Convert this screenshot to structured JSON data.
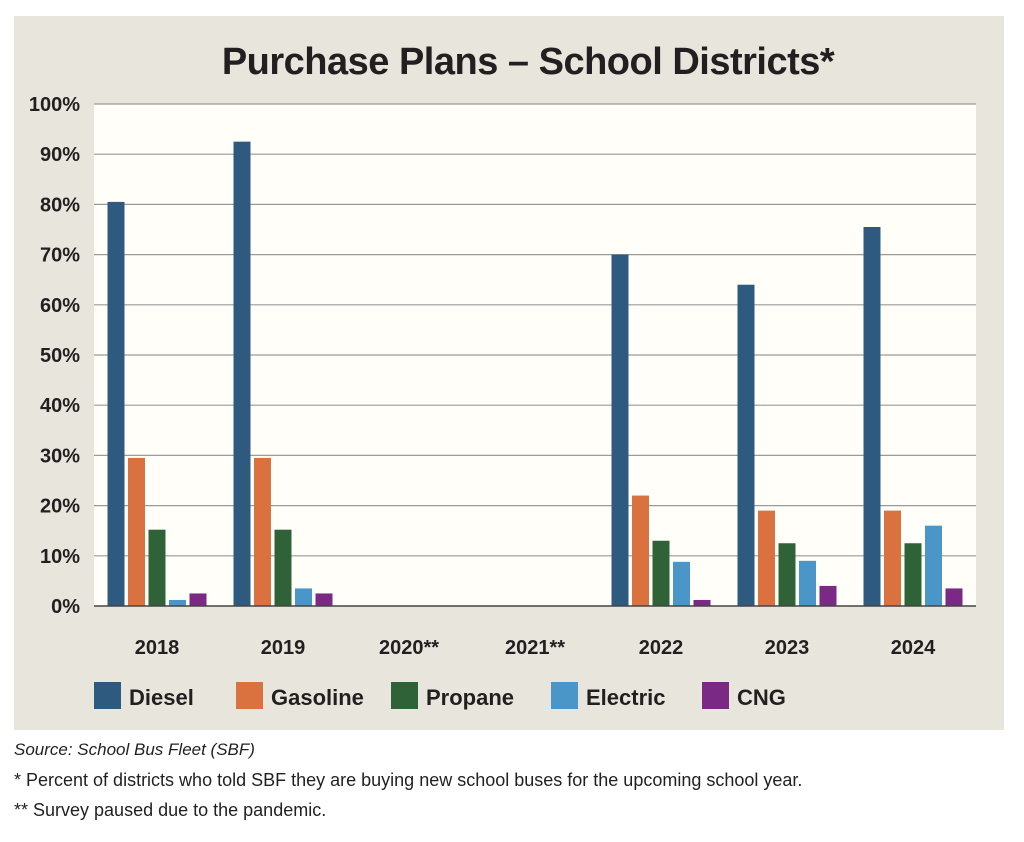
{
  "chart_data": {
    "type": "bar",
    "title": "Purchase Plans – School Districts*",
    "categories": [
      "2018",
      "2019",
      "2020**",
      "2021**",
      "2022",
      "2023",
      "2024"
    ],
    "ylim": [
      0,
      100
    ],
    "yticks": [
      "0%",
      "10%",
      "20%",
      "30%",
      "40%",
      "50%",
      "60%",
      "70%",
      "80%",
      "90%",
      "100%"
    ],
    "grid": true,
    "legend_position": "bottom",
    "series": [
      {
        "name": "Diesel",
        "color": "#2f5a80",
        "values": [
          80.5,
          92.5,
          null,
          null,
          70,
          64,
          75.5
        ]
      },
      {
        "name": "Gasoline",
        "color": "#d9723e",
        "values": [
          29.5,
          29.5,
          null,
          null,
          22,
          19,
          19
        ]
      },
      {
        "name": "Propane",
        "color": "#2f6237",
        "values": [
          15.2,
          15.2,
          null,
          null,
          13,
          12.5,
          12.5
        ]
      },
      {
        "name": "Electric",
        "color": "#4a96c8",
        "values": [
          1.2,
          3.5,
          null,
          null,
          8.8,
          9,
          16
        ]
      },
      {
        "name": "CNG",
        "color": "#7a2a85",
        "values": [
          2.5,
          2.5,
          null,
          null,
          1.2,
          4,
          3.5
        ]
      }
    ]
  },
  "footnotes": {
    "source": "Source: School Bus Fleet (SBF)",
    "note1": "* Percent of districts who told SBF they are buying new school buses for the upcoming school year.",
    "note2": "** Survey paused due to the pandemic."
  }
}
